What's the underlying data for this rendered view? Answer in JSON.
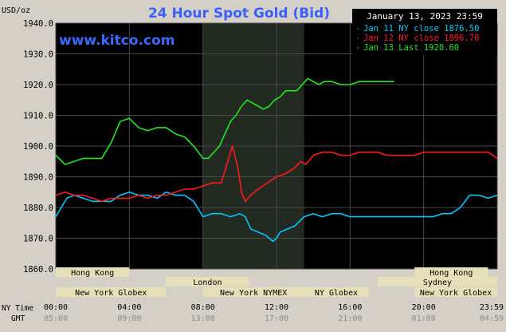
{
  "chart_data": {
    "type": "line",
    "title": "24 Hour Spot Gold (Bid)",
    "brand": "www.kitco.com",
    "date_label": "January 13, 2023 23:59",
    "ylabel": "USD/oz",
    "ylim": [
      1860,
      1940
    ],
    "y_ticks": [
      1860,
      1870,
      1880,
      1890,
      1900,
      1910,
      1920,
      1930,
      1940
    ],
    "y_tick_labels": [
      "1860.0",
      "1870.0",
      "1880.0",
      "1890.0",
      "1900.0",
      "1910.0",
      "1920.0",
      "1930.0",
      "1940.0"
    ],
    "xlim": [
      0,
      24
    ],
    "x_tick_positions": [
      0,
      4,
      8,
      12,
      16,
      20,
      24
    ],
    "x_label_ny": "NY Time",
    "x_label_gmt": "GMT",
    "x_ticks_ny": [
      "00:00",
      "04:00",
      "08:00",
      "12:00",
      "16:00",
      "20:00",
      "23:59"
    ],
    "x_ticks_gmt": [
      "05:00",
      "09:00",
      "13:00",
      "17:00",
      "21:00",
      "01:00",
      "04:59"
    ],
    "highlight_region": [
      8,
      13.5
    ],
    "grid": true,
    "legend_position": "top-right",
    "series": [
      {
        "name": "Jan 11 NY close 1876.50",
        "color": "#00c8ff",
        "x": [
          0,
          0.3,
          0.6,
          1,
          1.5,
          2,
          2.5,
          3,
          3.5,
          4,
          4.5,
          5,
          5.5,
          6,
          6.5,
          7,
          7.5,
          7.8,
          8,
          8.5,
          9,
          9.5,
          10,
          10.3,
          10.6,
          11,
          11.4,
          11.8,
          12,
          12.2,
          12.6,
          13,
          13.5,
          14,
          14.5,
          15,
          15.5,
          16,
          16.5,
          17,
          17.5,
          18,
          18.5,
          19,
          19.5,
          20,
          20.5,
          21,
          21.5,
          22,
          22.5,
          23,
          23.5,
          24
        ],
        "y": [
          1877,
          1880,
          1883,
          1884,
          1883,
          1882,
          1882,
          1882,
          1884,
          1885,
          1884,
          1884,
          1883,
          1885,
          1884,
          1884,
          1882,
          1879,
          1877,
          1878,
          1878,
          1877,
          1878,
          1877,
          1873,
          1872,
          1871,
          1869,
          1870,
          1872,
          1873,
          1874,
          1877,
          1878,
          1877,
          1878,
          1878,
          1877,
          1877,
          1877,
          1877,
          1877,
          1877,
          1877,
          1877,
          1877,
          1877,
          1878,
          1878,
          1880,
          1884,
          1884,
          1883,
          1884
        ]
      },
      {
        "name": "Jan 12 NY close 1896.70",
        "color": "#ff1a1a",
        "x": [
          0,
          0.5,
          1,
          1.5,
          2,
          2.5,
          3,
          3.5,
          4,
          4.5,
          5,
          5.5,
          6,
          6.5,
          7,
          7.5,
          8,
          8.5,
          9,
          9.3,
          9.6,
          9.9,
          10.1,
          10.3,
          10.6,
          11,
          11.5,
          12,
          12.5,
          13,
          13.3,
          13.6,
          14,
          14.5,
          15,
          15.5,
          16,
          16.5,
          17,
          17.5,
          18,
          18.5,
          19,
          19.5,
          20,
          20.5,
          21,
          21.5,
          22,
          22.5,
          23,
          23.5,
          24
        ],
        "y": [
          1884,
          1885,
          1884,
          1884,
          1883,
          1882,
          1883,
          1883,
          1883,
          1884,
          1883,
          1884,
          1884,
          1885,
          1886,
          1886,
          1887,
          1888,
          1888,
          1894,
          1900,
          1893,
          1885,
          1882,
          1884,
          1886,
          1888,
          1890,
          1891,
          1893,
          1895,
          1894,
          1897,
          1898,
          1898,
          1897,
          1897,
          1898,
          1898,
          1898,
          1897,
          1897,
          1897,
          1897,
          1898,
          1898,
          1898,
          1898,
          1898,
          1898,
          1898,
          1898,
          1896
        ]
      },
      {
        "name": "Jan 13 Last 1920.60",
        "color": "#22e622",
        "x": [
          0,
          0.5,
          1,
          1.5,
          2,
          2.5,
          3,
          3.5,
          4,
          4.5,
          5,
          5.5,
          6,
          6.5,
          7,
          7.5,
          8,
          8.3,
          8.6,
          8.9,
          9.2,
          9.5,
          9.8,
          10.1,
          10.4,
          10.7,
          11,
          11.3,
          11.6,
          11.9,
          12.2,
          12.5,
          12.8,
          13.1,
          13.4,
          13.7,
          14,
          14.3,
          14.6,
          15,
          15.5,
          16,
          16.5,
          17,
          17.5,
          18,
          18.4
        ],
        "y": [
          1897,
          1894,
          1895,
          1896,
          1896,
          1896,
          1901,
          1908,
          1909,
          1906,
          1905,
          1906,
          1906,
          1904,
          1903,
          1900,
          1896,
          1896,
          1898,
          1900,
          1904,
          1908,
          1910,
          1913,
          1915,
          1914,
          1913,
          1912,
          1913,
          1915,
          1916,
          1918,
          1918,
          1918,
          1920,
          1922,
          1921,
          1920,
          1921,
          1921,
          1920,
          1920,
          1921,
          1921,
          1921,
          1921,
          1921
        ]
      }
    ],
    "sessions": [
      {
        "name": "Hong Kong",
        "start": 0,
        "end": 4,
        "row": 0
      },
      {
        "name": "Hong Kong",
        "start": 19.5,
        "end": 23.5,
        "row": 0
      },
      {
        "name": "London",
        "start": 6,
        "end": 10.5,
        "row": 1
      },
      {
        "name": "Sydney",
        "start": 17.5,
        "end": 24,
        "row": 1
      },
      {
        "name": "New York Globex",
        "start": 0,
        "end": 6,
        "row": 2
      },
      {
        "name": "New York NYMEX",
        "start": 8,
        "end": 13.5,
        "row": 2
      },
      {
        "name": "NY Globex",
        "start": 13.5,
        "end": 17,
        "row": 2
      },
      {
        "name": "New York Globex",
        "start": 19.5,
        "end": 24,
        "row": 2
      }
    ]
  },
  "colors": {
    "frame": "#d4d0c8",
    "plot_bg": "#000000",
    "highlight_bg": "#222a22",
    "grid": "#4a4a4a",
    "title": "#3a5fff",
    "brand": "#3a6aff",
    "session_box": "#e6e0b8",
    "legend_text": "#ffffff"
  }
}
